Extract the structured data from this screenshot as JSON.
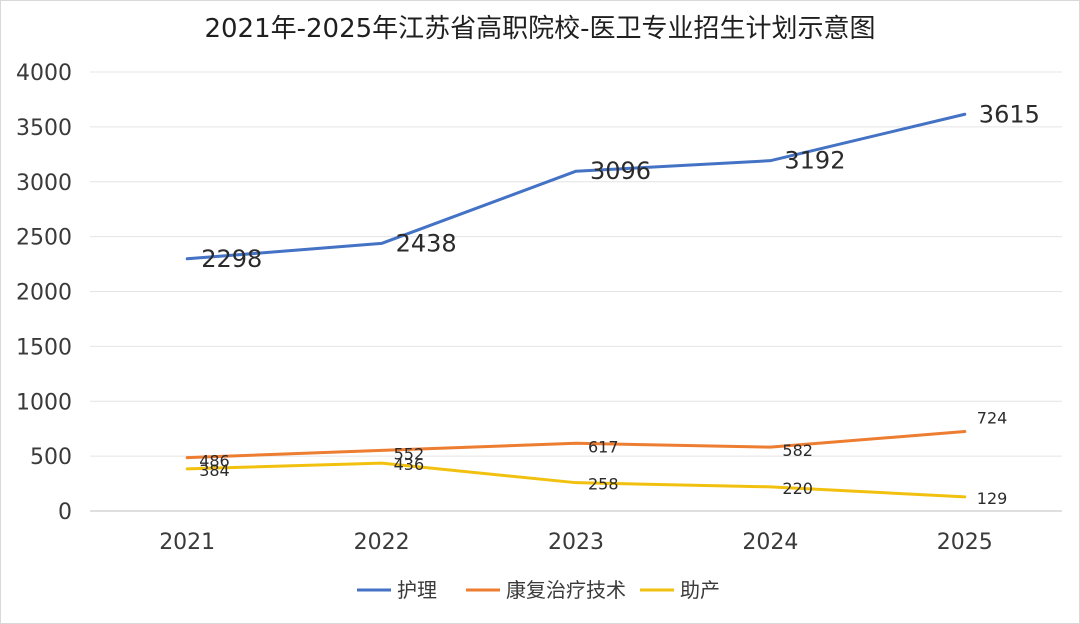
{
  "chart_data": {
    "type": "line",
    "title": "2021年-2025年江苏省高职院校-医卫专业招生计划示意图",
    "categories": [
      "2021",
      "2022",
      "2023",
      "2024",
      "2025"
    ],
    "yticks": [
      "0",
      "500",
      "1000",
      "1500",
      "2000",
      "2500",
      "3000",
      "3500",
      "4000"
    ],
    "ylim": [
      0,
      4000
    ],
    "grid": true,
    "legend_position": "bottom",
    "series": [
      {
        "name": "护理",
        "color": "#4472C4",
        "values": [
          2298,
          2438,
          3096,
          3192,
          3615
        ],
        "labels": [
          "2298",
          "2438",
          "3096",
          "3192",
          "3615"
        ]
      },
      {
        "name": "康复治疗技术",
        "color": "#ED7D31",
        "values": [
          486,
          552,
          617,
          582,
          724
        ],
        "labels": [
          "486",
          "552",
          "617",
          "582",
          "724"
        ]
      },
      {
        "name": "助产",
        "color": "#F2C10F",
        "values": [
          384,
          436,
          258,
          220,
          129
        ],
        "labels": [
          "384",
          "436",
          "258",
          "220",
          "129"
        ]
      }
    ]
  }
}
